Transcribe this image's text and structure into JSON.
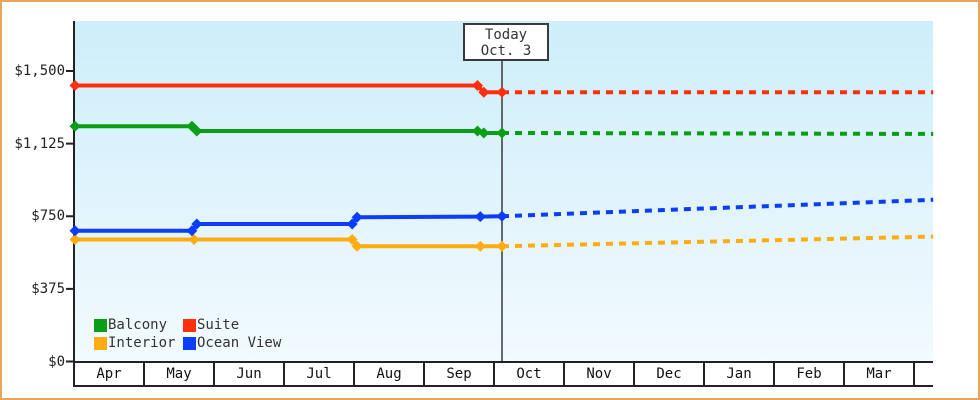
{
  "chart_data": {
    "type": "line",
    "title": "",
    "x_axis": {
      "tick_labels": [
        "Apr",
        "May",
        "Jun",
        "Jul",
        "Aug",
        "Sep",
        "Oct",
        "Nov",
        "Dec",
        "Jan",
        "Feb",
        "Mar"
      ],
      "months_shown": 12
    },
    "y_axis": {
      "tick_labels": [
        "$1,500",
        "$1,125",
        "$750",
        "$375",
        "$0"
      ],
      "tick_values": [
        1500,
        1125,
        750,
        375,
        0
      ],
      "unit": "USD",
      "range": [
        0,
        1550
      ]
    },
    "today_marker": {
      "line1": "Today",
      "line2": "Oct. 3",
      "month_fraction": 6.1
    },
    "forecast_line_style": "dotted",
    "legend": {
      "rows": [
        [
          "Balcony",
          "Suite"
        ],
        [
          "Interior",
          "Ocean View"
        ]
      ]
    },
    "series": [
      {
        "name": "Interior",
        "color": "#FFAC12",
        "history": [
          {
            "m": 0,
            "price": 630
          },
          {
            "m": 1.7,
            "price": 630
          },
          {
            "m": 3.96,
            "price": 630
          },
          {
            "m": 4.03,
            "price": 595
          },
          {
            "m": 5.79,
            "price": 595
          },
          {
            "m": 6.1,
            "price": 595
          }
        ],
        "forecast": [
          {
            "m": 6.1,
            "price": 595
          },
          {
            "m": 12.26,
            "price": 645
          }
        ]
      },
      {
        "name": "Ocean View",
        "color": "#0C3DFB",
        "history": [
          {
            "m": 0,
            "price": 675
          },
          {
            "m": 1.67,
            "price": 675
          },
          {
            "m": 1.74,
            "price": 710
          },
          {
            "m": 3.96,
            "price": 710
          },
          {
            "m": 4.03,
            "price": 745
          },
          {
            "m": 5.79,
            "price": 748
          },
          {
            "m": 6.1,
            "price": 750
          }
        ],
        "forecast": [
          {
            "m": 6.1,
            "price": 750
          },
          {
            "m": 12.26,
            "price": 835
          }
        ]
      },
      {
        "name": "Balcony",
        "color": "#0A9E14",
        "history": [
          {
            "m": 0,
            "price": 1215
          },
          {
            "m": 1.67,
            "price": 1215
          },
          {
            "m": 1.74,
            "price": 1190
          },
          {
            "m": 5.75,
            "price": 1190
          },
          {
            "m": 5.84,
            "price": 1180
          },
          {
            "m": 6.1,
            "price": 1180
          }
        ],
        "forecast": [
          {
            "m": 6.1,
            "price": 1180
          },
          {
            "m": 12.26,
            "price": 1175
          }
        ]
      },
      {
        "name": "Suite",
        "color": "#FF2F0D",
        "history": [
          {
            "m": 0,
            "price": 1425
          },
          {
            "m": 5.75,
            "price": 1425
          },
          {
            "m": 5.84,
            "price": 1390
          },
          {
            "m": 6.1,
            "price": 1390
          }
        ],
        "forecast": [
          {
            "m": 6.1,
            "price": 1390
          },
          {
            "m": 12.26,
            "price": 1390
          }
        ]
      }
    ]
  }
}
